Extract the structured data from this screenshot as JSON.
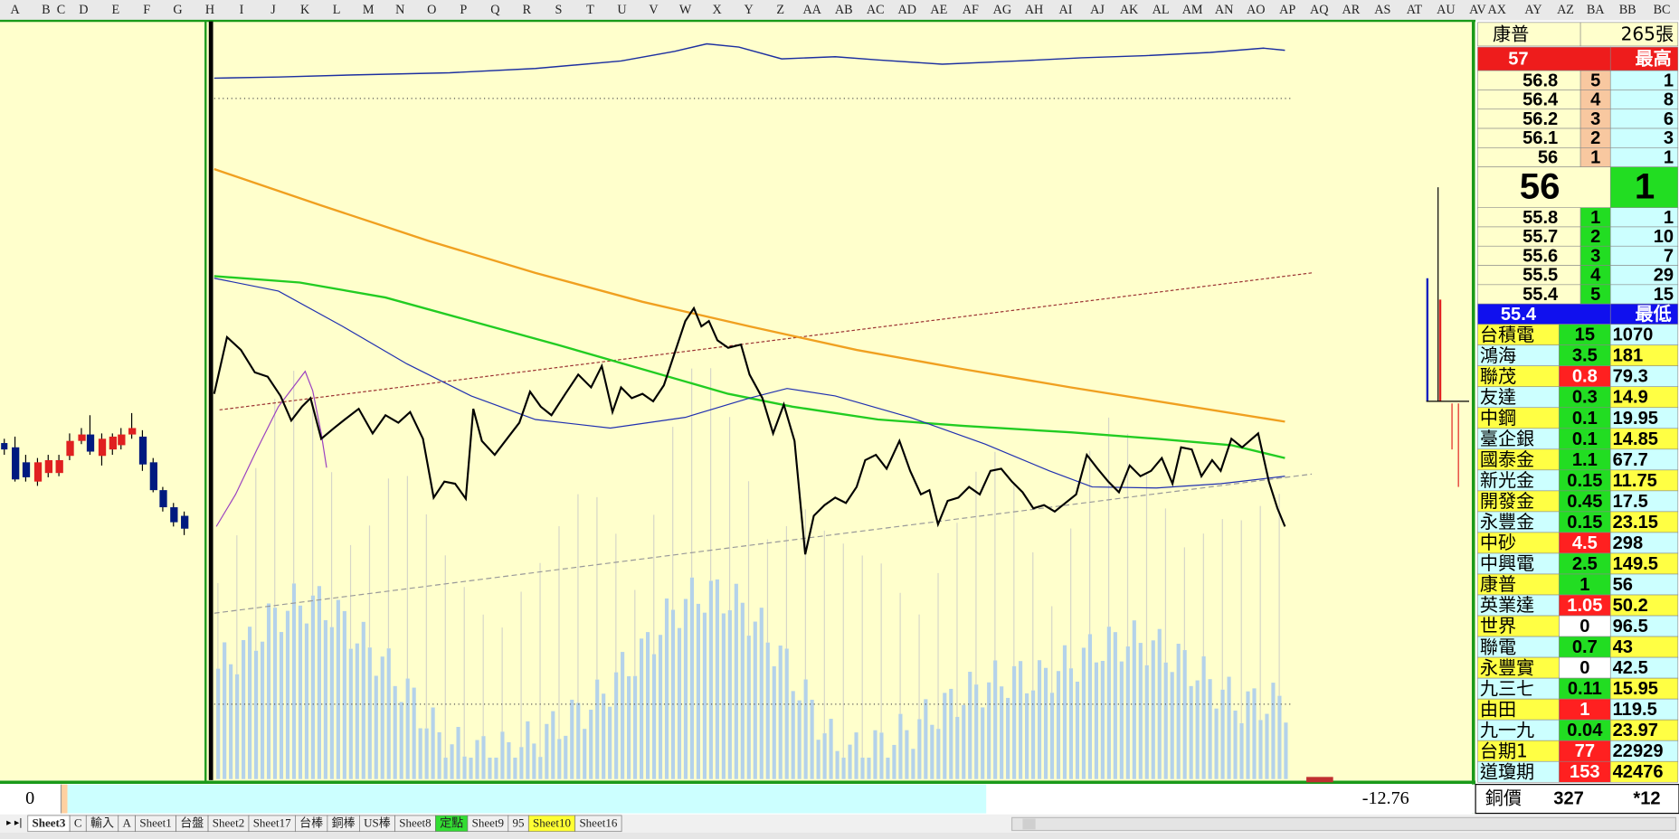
{
  "column_headers": [
    "A",
    "B",
    "C",
    "D",
    "E",
    "F",
    "G",
    "H",
    "I",
    "J",
    "K",
    "L",
    "M",
    "N",
    "O",
    "P",
    "Q",
    "R",
    "S",
    "T",
    "U",
    "V",
    "W",
    "X",
    "Y",
    "Z",
    "AA",
    "AB",
    "AC",
    "AD",
    "AE",
    "AF",
    "AG",
    "AH",
    "AI",
    "AJ",
    "AK",
    "AL",
    "AM",
    "AN",
    "AO",
    "AP",
    "AQ",
    "AR",
    "AS",
    "AT",
    "AU",
    "AV",
    "AX",
    "AY",
    "AZ",
    "BA",
    "BB",
    "BC"
  ],
  "quote": {
    "name": "康普",
    "volume": "265張",
    "high": 57,
    "high_label": "最高",
    "asks": [
      {
        "price": 56.8,
        "level": 5,
        "qty": 1
      },
      {
        "price": 56.4,
        "level": 4,
        "qty": 8
      },
      {
        "price": 56.2,
        "level": 3,
        "qty": 6
      },
      {
        "price": 56.1,
        "level": 2,
        "qty": 3
      },
      {
        "price": 56,
        "level": 1,
        "qty": 1
      }
    ],
    "last": 56,
    "last_qty": 1,
    "bids": [
      {
        "price": 55.8,
        "level": 1,
        "qty": 1
      },
      {
        "price": 55.7,
        "level": 2,
        "qty": 10
      },
      {
        "price": 55.6,
        "level": 3,
        "qty": 7
      },
      {
        "price": 55.5,
        "level": 4,
        "qty": 29
      },
      {
        "price": 55.4,
        "level": 5,
        "qty": 15
      }
    ],
    "low": 55.4,
    "low_label": "最低"
  },
  "watchlist": [
    {
      "name": "台積電",
      "change": 15,
      "price": 1070,
      "color": "#22dd22"
    },
    {
      "name": "鴻海",
      "change": 3.5,
      "price": 181,
      "color": "#22dd22"
    },
    {
      "name": "聯茂",
      "change": 0.8,
      "price": 79.3,
      "color": "#ff2020"
    },
    {
      "name": "友達",
      "change": 0.3,
      "price": 14.9,
      "color": "#22dd22"
    },
    {
      "name": "中鋼",
      "change": 0.1,
      "price": 19.95,
      "color": "#22dd22"
    },
    {
      "name": "臺企銀",
      "change": 0.1,
      "price": 14.85,
      "color": "#22dd22"
    },
    {
      "name": "國泰金",
      "change": 1.1,
      "price": 67.7,
      "color": "#22dd22"
    },
    {
      "name": "新光金",
      "change": 0.15,
      "price": 11.75,
      "color": "#22dd22"
    },
    {
      "name": "開發金",
      "change": 0.45,
      "price": 17.5,
      "color": "#22dd22"
    },
    {
      "name": "永豐金",
      "change": 0.15,
      "price": 23.15,
      "color": "#22dd22"
    },
    {
      "name": "中砂",
      "change": 4.5,
      "price": 298,
      "color": "#ff2020"
    },
    {
      "name": "中興電",
      "change": 2.5,
      "price": 149.5,
      "color": "#22dd22"
    },
    {
      "name": "康普",
      "change": 1,
      "price": 56,
      "color": "#22dd22"
    },
    {
      "name": "英業達",
      "change": 1.05,
      "price": 50.2,
      "color": "#ff2020"
    },
    {
      "name": "世界",
      "change": 0,
      "price": 96.5,
      "color": "#ffffff"
    },
    {
      "name": "聯電",
      "change": 0.7,
      "price": 43,
      "color": "#22dd22"
    },
    {
      "name": "永豐實",
      "change": 0,
      "price": 42.5,
      "color": "#ffffff"
    },
    {
      "name": "九三七",
      "change": 0.11,
      "price": 15.95,
      "color": "#22dd22"
    },
    {
      "name": "由田",
      "change": 1,
      "price": 119.5,
      "color": "#ff2020"
    },
    {
      "name": "九一九",
      "change": 0.04,
      "price": 23.97,
      "color": "#22dd22"
    },
    {
      "name": "台期1",
      "change": 77,
      "price": 22929,
      "color": "#ff2020"
    },
    {
      "name": "道瓊期",
      "change": 153,
      "price": 42476,
      "color": "#ff2020"
    }
  ],
  "bottom": {
    "cell_a": 0,
    "value": -12.76,
    "label": "銅價",
    "price": 327,
    "note": "*12"
  },
  "sheet_tabs": [
    "Sheet3",
    "C",
    "輸入",
    "A",
    "Sheet1",
    "台盤",
    "Sheet2",
    "Sheet17",
    "台棒",
    "銅棒",
    "US棒",
    "Sheet8",
    "定點",
    "Sheet9",
    "95",
    "Sheet10",
    "Sheet16"
  ]
}
